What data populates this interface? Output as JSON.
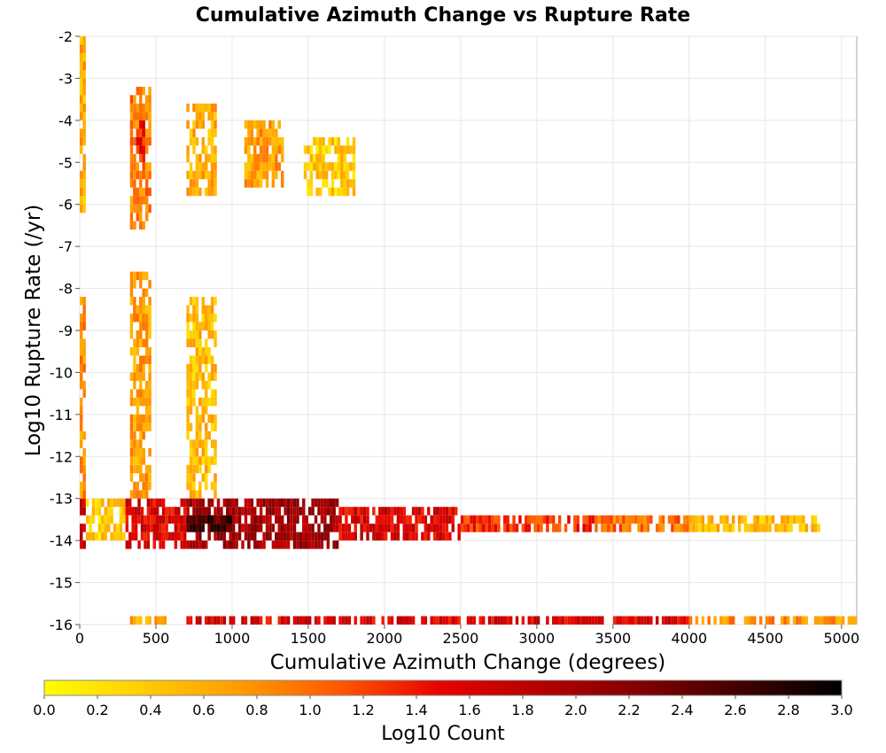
{
  "chart_data": {
    "type": "heatmap",
    "title": "Cumulative Azimuth Change vs Rupture Rate",
    "xlabel": "Cumulative Azimuth Change (degrees)",
    "ylabel": "Log10 Rupture Rate (/yr)",
    "xlim": [
      0,
      5100
    ],
    "ylim": [
      -16,
      -2
    ],
    "x_ticks": [
      0,
      500,
      1000,
      1500,
      2000,
      2500,
      3000,
      3500,
      4000,
      4500,
      5000
    ],
    "y_ticks": [
      -2,
      -3,
      -4,
      -5,
      -6,
      -7,
      -8,
      -9,
      -10,
      -11,
      -12,
      -13,
      -14,
      -15,
      -16
    ],
    "grid": true,
    "colorscale": {
      "label": "Log10 Count",
      "min": 0.0,
      "max": 3.0,
      "ticks": [
        "0.0",
        "0.2",
        "0.4",
        "0.6",
        "0.8",
        "1.0",
        "1.2",
        "1.4",
        "1.6",
        "1.8",
        "2.0",
        "2.2",
        "2.4",
        "2.6",
        "2.8",
        "3.0"
      ],
      "colors": [
        "#ffff00",
        "#ffcc00",
        "#ff9900",
        "#ff5500",
        "#e60000",
        "#b30000",
        "#800000",
        "#400000",
        "#000000"
      ]
    },
    "bin_size": {
      "x": 20,
      "y": 0.2
    },
    "regions": [
      {
        "x": [
          0,
          40
        ],
        "y": [
          -13.0,
          -14.2
        ],
        "value": 1.7
      },
      {
        "x": [
          0,
          40
        ],
        "y": [
          -2.0,
          -6.2
        ],
        "value": 0.6
      },
      {
        "x": [
          0,
          40
        ],
        "y": [
          -8.2,
          -13.0
        ],
        "value": 0.8
      },
      {
        "x": [
          330,
          470
        ],
        "y": [
          -3.2,
          -6.6
        ],
        "value": 0.9
      },
      {
        "x": [
          370,
          420
        ],
        "y": [
          -4.0,
          -5.0
        ],
        "value": 1.4
      },
      {
        "x": [
          330,
          460
        ],
        "y": [
          -7.6,
          -13.0
        ],
        "value": 0.7
      },
      {
        "x": [
          700,
          900
        ],
        "y": [
          -3.6,
          -5.8
        ],
        "value": 0.6
      },
      {
        "x": [
          700,
          900
        ],
        "y": [
          -8.2,
          -13.0
        ],
        "value": 0.5
      },
      {
        "x": [
          1080,
          1340
        ],
        "y": [
          -4.0,
          -5.6
        ],
        "value": 0.7
      },
      {
        "x": [
          1470,
          1800
        ],
        "y": [
          -4.4,
          -5.8
        ],
        "value": 0.4
      },
      {
        "x": [
          40,
          300
        ],
        "y": [
          -13.0,
          -14.0
        ],
        "value": 0.4
      },
      {
        "x": [
          300,
          700
        ],
        "y": [
          -13.0,
          -14.2
        ],
        "value": 1.6
      },
      {
        "x": [
          700,
          1700
        ],
        "y": [
          -13.0,
          -14.2
        ],
        "value": 2.0
      },
      {
        "x": [
          700,
          1000
        ],
        "y": [
          -13.4,
          -13.8
        ],
        "value": 2.6
      },
      {
        "x": [
          1700,
          2500
        ],
        "y": [
          -13.2,
          -14.0
        ],
        "value": 1.6
      },
      {
        "x": [
          2500,
          3400
        ],
        "y": [
          -13.4,
          -13.8
        ],
        "value": 1.3
      },
      {
        "x": [
          3400,
          4000
        ],
        "y": [
          -13.4,
          -13.8
        ],
        "value": 1.0
      },
      {
        "x": [
          4000,
          4850
        ],
        "y": [
          -13.4,
          -13.8
        ],
        "value": 0.5
      },
      {
        "x": [
          330,
          560
        ],
        "y": [
          -15.8,
          -16.0
        ],
        "value": 0.6
      },
      {
        "x": [
          700,
          4000
        ],
        "y": [
          -15.8,
          -16.0
        ],
        "value": 1.6
      },
      {
        "x": [
          4000,
          5100
        ],
        "y": [
          -15.8,
          -16.0
        ],
        "value": 0.8
      }
    ]
  }
}
